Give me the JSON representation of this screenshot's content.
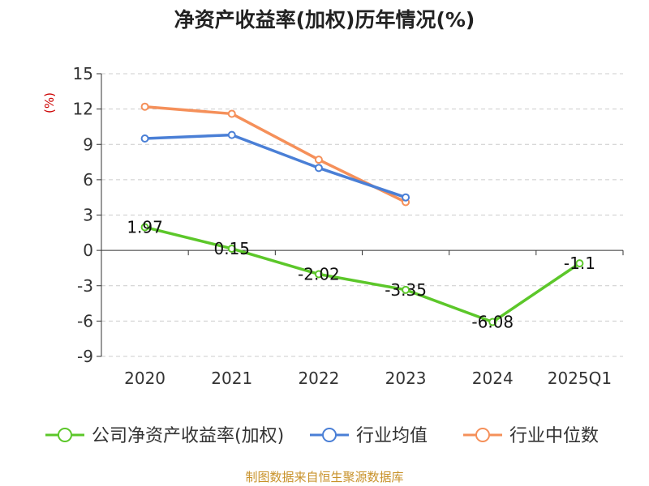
{
  "chart_data": {
    "type": "line",
    "title": "净资产收益率(加权)历年情况(%)",
    "ylabel": "(%)",
    "xlabel": "",
    "categories": [
      "2020",
      "2021",
      "2022",
      "2023",
      "2024",
      "2025Q1"
    ],
    "ylim": [
      -9,
      15
    ],
    "yticks": [
      15,
      12,
      9,
      6,
      3,
      0,
      -3,
      -6,
      -9
    ],
    "grid": true,
    "legend_position": "bottom",
    "series": [
      {
        "name": "公司净资产收益率(加权)",
        "color": "#5cc72a",
        "values": [
          1.97,
          0.15,
          -2.02,
          -3.35,
          -6.08,
          -1.1
        ],
        "labels": [
          "1.97",
          "0.15",
          "-2.02",
          "-3.35",
          "-6.08",
          "-1.1"
        ]
      },
      {
        "name": "行业均值",
        "color": "#4a7fd6",
        "values": [
          9.5,
          9.8,
          7.0,
          4.5,
          null,
          null
        ]
      },
      {
        "name": "行业中位数",
        "color": "#f5905a",
        "values": [
          12.2,
          11.6,
          7.7,
          4.1,
          null,
          null
        ]
      }
    ]
  },
  "source": "制图数据来自恒生聚源数据库"
}
